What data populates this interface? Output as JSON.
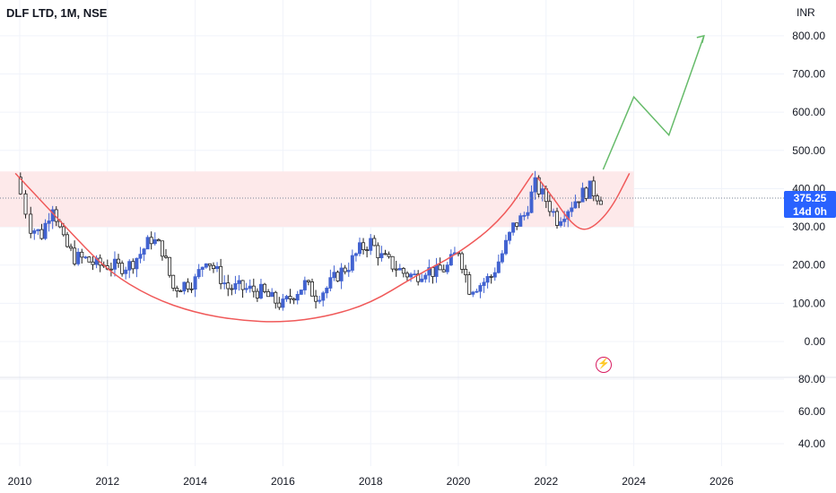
{
  "header": {
    "title": "DLF LTD, 1M, NSE",
    "currency": "INR"
  },
  "price_tag": {
    "price": "375.25",
    "countdown": "14d 0h"
  },
  "colors": {
    "up": "#4263d1",
    "down": "#1f1f1f",
    "curve": "#f05a5a",
    "zone": "#fde9ea",
    "projection": "#66bb6a",
    "price_tag": "#2962ff"
  },
  "icons": {
    "flash": "lightning-icon"
  },
  "chart_data": [
    {
      "type": "candlestick",
      "title": "DLF LTD, 1M, NSE",
      "x_ticks": [
        "2010",
        "2012",
        "2014",
        "2016",
        "2018",
        "2020",
        "2022",
        "2024",
        "2026"
      ],
      "y_ticks": [
        "800.00",
        "700.00",
        "600.00",
        "500.00",
        "400.00",
        "300.00",
        "200.00",
        "100.00",
        "0.00"
      ],
      "ylim": [
        0,
        850
      ],
      "last_price": 375.25,
      "quarterly_closes": {
        "x": [
          2009.9,
          2010.25,
          2010.5,
          2010.75,
          2011.0,
          2011.25,
          2011.5,
          2011.75,
          2012.0,
          2012.25,
          2012.5,
          2012.75,
          2013.0,
          2013.25,
          2013.5,
          2013.75,
          2014.0,
          2014.25,
          2014.5,
          2014.75,
          2015.0,
          2015.25,
          2015.5,
          2015.75,
          2016.0,
          2016.25,
          2016.5,
          2016.75,
          2017.0,
          2017.25,
          2017.5,
          2017.75,
          2018.0,
          2018.25,
          2018.5,
          2018.75,
          2019.0,
          2019.25,
          2019.5,
          2019.75,
          2020.0,
          2020.25,
          2020.5,
          2020.75,
          2021.0,
          2021.25,
          2021.5,
          2021.75,
          2022.0,
          2022.25,
          2022.5,
          2022.75,
          2023.0,
          2023.25
        ],
        "close": [
          430,
          300,
          280,
          360,
          260,
          220,
          215,
          200,
          200,
          195,
          200,
          230,
          270,
          240,
          140,
          150,
          160,
          220,
          180,
          140,
          140,
          135,
          130,
          110,
          95,
          125,
          150,
          120,
          140,
          175,
          200,
          240,
          260,
          220,
          200,
          180,
          170,
          190,
          180,
          195,
          240,
          140,
          150,
          170,
          230,
          300,
          330,
          410,
          370,
          320,
          350,
          380,
          400,
          375
        ]
      },
      "rounding_bottom": {
        "x": [
          2009.9,
          2011.0,
          2012.0,
          2013.0,
          2014.0,
          2015.0,
          2016.0,
          2017.0,
          2018.0,
          2019.0,
          2020.0,
          2021.0,
          2021.7
        ],
        "y": [
          440,
          305,
          185,
          115,
          75,
          55,
          50,
          65,
          100,
          170,
          230,
          320,
          440
        ]
      },
      "handle_curve": {
        "x": [
          2021.8,
          2022.2,
          2022.5,
          2022.8,
          2023.1,
          2023.5,
          2023.9
        ],
        "y": [
          430,
          370,
          320,
          290,
          300,
          350,
          440
        ]
      },
      "projection": {
        "x": [
          2023.3,
          2024.0,
          2024.8,
          2025.6
        ],
        "y": [
          450,
          640,
          540,
          800
        ]
      },
      "resistance_zone": [
        300,
        445
      ]
    },
    {
      "type": "indicator",
      "y_ticks": [
        "80.00",
        "60.00",
        "40.00"
      ]
    }
  ]
}
